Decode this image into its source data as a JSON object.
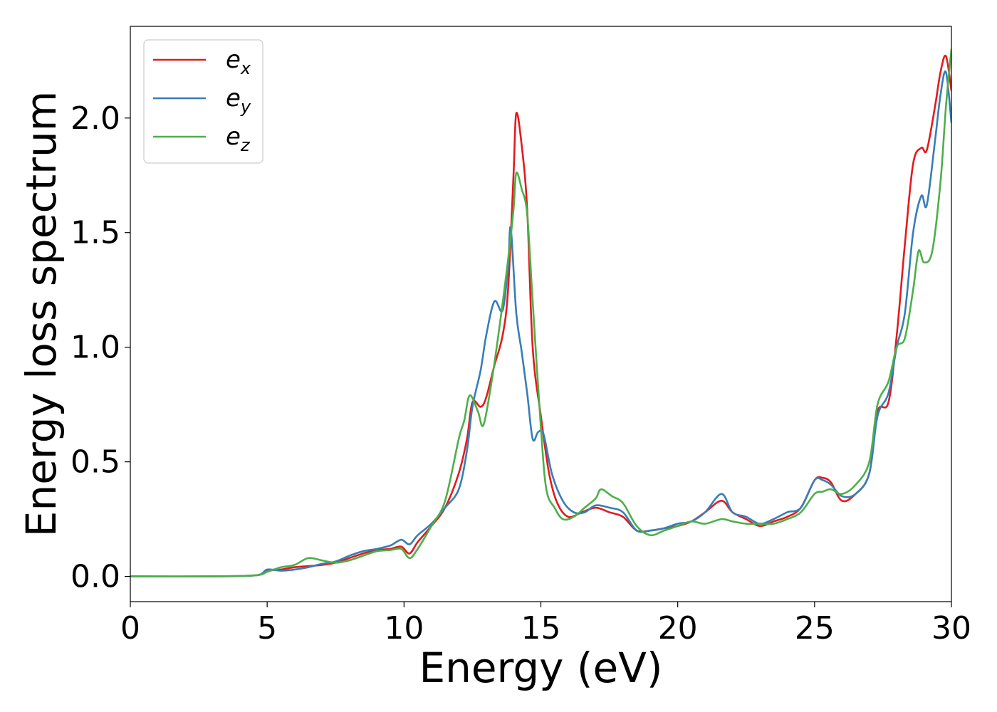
{
  "chart_data": {
    "type": "line",
    "xlabel": "Energy (eV)",
    "ylabel": "Energy loss spectrum",
    "xlim": [
      0,
      30
    ],
    "ylim": [
      -0.11,
      2.4
    ],
    "xticks": [
      0,
      5,
      10,
      15,
      20,
      25,
      30
    ],
    "xtick_labels": [
      "0",
      "5",
      "10",
      "15",
      "20",
      "25",
      "30"
    ],
    "yticks": [
      0.0,
      0.5,
      1.0,
      1.5,
      2.0
    ],
    "ytick_labels": [
      "0.0",
      "0.5",
      "1.0",
      "1.5",
      "2.0"
    ],
    "grid": false,
    "legend_position": "top-left",
    "series": [
      {
        "name": "e_x",
        "label_main": "e",
        "label_sub": "x",
        "color": "#e41a1c",
        "x": [
          0,
          3,
          4.6,
          5.0,
          5.5,
          6.0,
          6.5,
          7.0,
          7.5,
          8.0,
          8.5,
          9.0,
          9.5,
          9.9,
          10.2,
          10.5,
          11.0,
          11.5,
          12.0,
          12.3,
          12.5,
          12.8,
          13.0,
          13.3,
          13.6,
          13.8,
          14.0,
          14.1,
          14.3,
          14.5,
          14.7,
          15.0,
          15.3,
          15.6,
          16.0,
          16.5,
          17.0,
          17.5,
          18.0,
          18.5,
          19.0,
          19.5,
          20.0,
          20.5,
          21.0,
          21.6,
          22.0,
          22.5,
          23.0,
          23.5,
          24.0,
          24.5,
          25.0,
          25.3,
          25.6,
          26.0,
          26.5,
          27.0,
          27.3,
          27.7,
          28.0,
          28.3,
          28.6,
          28.9,
          29.1,
          29.4,
          29.6,
          29.8,
          30.0
        ],
        "values": [
          0,
          0,
          0.005,
          0.025,
          0.03,
          0.04,
          0.045,
          0.05,
          0.06,
          0.08,
          0.1,
          0.115,
          0.12,
          0.13,
          0.1,
          0.15,
          0.22,
          0.3,
          0.45,
          0.6,
          0.76,
          0.74,
          0.78,
          0.92,
          1.05,
          1.25,
          1.75,
          2.02,
          1.88,
          1.6,
          1.0,
          0.7,
          0.45,
          0.32,
          0.26,
          0.28,
          0.3,
          0.28,
          0.26,
          0.2,
          0.2,
          0.21,
          0.22,
          0.24,
          0.28,
          0.33,
          0.28,
          0.25,
          0.22,
          0.24,
          0.26,
          0.3,
          0.42,
          0.43,
          0.41,
          0.33,
          0.36,
          0.45,
          0.72,
          0.76,
          1.05,
          1.45,
          1.8,
          1.87,
          1.86,
          2.05,
          2.2,
          2.27,
          2.12
        ]
      },
      {
        "name": "e_y",
        "label_main": "e",
        "label_sub": "y",
        "color": "#377eb8",
        "x": [
          0,
          3,
          4.6,
          5.0,
          5.5,
          6.0,
          6.5,
          7.0,
          7.5,
          8.0,
          8.5,
          9.0,
          9.5,
          9.9,
          10.2,
          10.5,
          11.0,
          11.5,
          12.0,
          12.3,
          12.5,
          12.8,
          13.0,
          13.3,
          13.6,
          13.8,
          13.9,
          14.1,
          14.3,
          14.5,
          14.7,
          14.9,
          15.1,
          15.4,
          15.8,
          16.2,
          16.6,
          17.0,
          17.5,
          18.0,
          18.5,
          19.0,
          19.5,
          20.0,
          20.5,
          21.0,
          21.6,
          22.0,
          22.5,
          23.0,
          23.5,
          24.0,
          24.5,
          25.0,
          25.3,
          25.6,
          26.0,
          26.5,
          27.0,
          27.3,
          27.7,
          28.0,
          28.3,
          28.6,
          28.9,
          29.1,
          29.4,
          29.6,
          29.8,
          30.0
        ],
        "values": [
          0,
          0,
          0.005,
          0.03,
          0.025,
          0.03,
          0.04,
          0.055,
          0.065,
          0.09,
          0.11,
          0.12,
          0.135,
          0.16,
          0.14,
          0.18,
          0.23,
          0.3,
          0.38,
          0.55,
          0.74,
          0.9,
          1.05,
          1.2,
          1.16,
          1.35,
          1.52,
          1.15,
          0.98,
          0.8,
          0.6,
          0.63,
          0.62,
          0.45,
          0.33,
          0.28,
          0.28,
          0.31,
          0.3,
          0.28,
          0.2,
          0.2,
          0.21,
          0.23,
          0.24,
          0.28,
          0.36,
          0.28,
          0.26,
          0.23,
          0.25,
          0.28,
          0.3,
          0.42,
          0.42,
          0.4,
          0.35,
          0.36,
          0.45,
          0.7,
          0.8,
          1.0,
          1.15,
          1.5,
          1.66,
          1.62,
          1.9,
          2.1,
          2.2,
          1.98
        ]
      },
      {
        "name": "e_z",
        "label_main": "e",
        "label_sub": "z",
        "color": "#4daf4a",
        "x": [
          0,
          3,
          4.6,
          5.0,
          5.5,
          6.0,
          6.5,
          7.0,
          7.5,
          8.0,
          8.5,
          9.0,
          9.5,
          9.9,
          10.2,
          10.5,
          11.0,
          11.5,
          12.0,
          12.2,
          12.4,
          12.7,
          12.9,
          13.2,
          13.5,
          13.8,
          14.0,
          14.1,
          14.3,
          14.5,
          14.7,
          15.0,
          15.2,
          15.5,
          15.8,
          16.2,
          16.6,
          17.0,
          17.2,
          17.6,
          18.0,
          18.5,
          19.0,
          19.5,
          20.0,
          20.5,
          21.0,
          21.6,
          22.0,
          22.5,
          23.0,
          23.5,
          24.0,
          24.5,
          25.0,
          25.3,
          25.6,
          26.0,
          26.5,
          27.0,
          27.3,
          27.7,
          28.0,
          28.3,
          28.6,
          28.8,
          29.0,
          29.3,
          29.6,
          29.8,
          30.0
        ],
        "values": [
          0,
          0,
          0.005,
          0.02,
          0.04,
          0.05,
          0.08,
          0.07,
          0.06,
          0.07,
          0.09,
          0.11,
          0.115,
          0.12,
          0.08,
          0.12,
          0.22,
          0.33,
          0.6,
          0.68,
          0.79,
          0.72,
          0.66,
          0.85,
          1.1,
          1.38,
          1.6,
          1.76,
          1.69,
          1.58,
          1.2,
          0.65,
          0.38,
          0.3,
          0.25,
          0.26,
          0.3,
          0.34,
          0.38,
          0.35,
          0.32,
          0.22,
          0.18,
          0.2,
          0.22,
          0.24,
          0.23,
          0.25,
          0.24,
          0.23,
          0.23,
          0.23,
          0.25,
          0.28,
          0.36,
          0.37,
          0.38,
          0.36,
          0.4,
          0.5,
          0.75,
          0.85,
          1.0,
          1.04,
          1.25,
          1.42,
          1.37,
          1.42,
          1.72,
          2.05,
          2.3
        ]
      }
    ]
  }
}
